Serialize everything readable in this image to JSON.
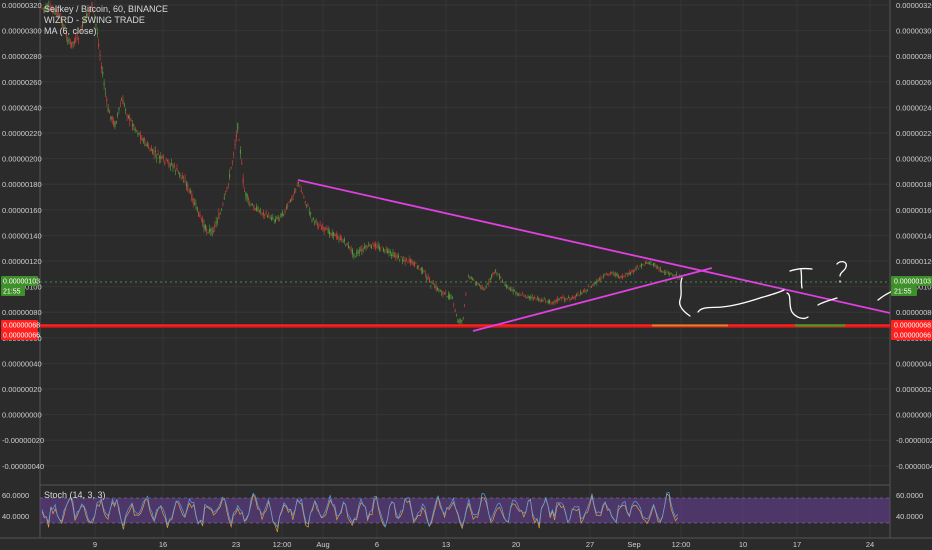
{
  "header": {
    "symbol_line": "Selfkey / Bitcoin, 60, BINANCE",
    "indicator_1": "WIZRD - SWING TRADE",
    "indicator_2": "MA (6, close)"
  },
  "oscillator": {
    "label": "Stoch (14, 3, 3)",
    "ticks": [
      "60.0000",
      "40.0000"
    ]
  },
  "colors": {
    "background": "#2b2b2b",
    "grid": "#363636",
    "candle_up": "#5b9a3a",
    "candle_down": "#d0403a",
    "trendline": "#e040e0",
    "support": "#ff2020",
    "stoch_fill": "#6a3f9a"
  },
  "price_axis": {
    "ticks": [
      "0.00000320",
      "0.00000300",
      "0.00000280",
      "0.00000260",
      "0.00000240",
      "0.00000220",
      "0.00000200",
      "0.00000180",
      "0.00000160",
      "0.00000140",
      "0.00000120",
      "0.00000100",
      "0.00000080",
      "0.00000060",
      "0.00000040",
      "0.00000020",
      "0.00000000",
      "-0.00000020",
      "-0.00000040"
    ],
    "current_price_tag": {
      "value": "0.00000103",
      "time": "21:55"
    },
    "support_tags": [
      "0.00000068",
      "0.00000066"
    ]
  },
  "time_axis": {
    "ticks": [
      "9",
      "16",
      "23",
      "12:00",
      "Aug",
      "6",
      "13",
      "20",
      "27",
      "Sep",
      "12:00",
      "10",
      "17",
      "24"
    ]
  },
  "chart_data": {
    "type": "line",
    "title": "Selfkey / Bitcoin, 60, BINANCE",
    "ylim": [
      -4.8e-07,
      3.23e-06
    ],
    "series": [
      {
        "name": "Selfkey / Bitcoin",
        "x": [
          "9",
          "16",
          "23",
          "12:00",
          "Aug",
          "6",
          "13",
          "20",
          "27",
          "Sep",
          "12:00"
        ],
        "values": [
          3e-06,
          2e-06,
          1.5e-06,
          1.75e-06,
          1.4e-06,
          1.2e-06,
          7.5e-07,
          8.8e-07,
          8.5e-07,
          1.05e-06,
          1.03e-06
        ]
      }
    ],
    "support_levels": [
      6.8e-07,
      6.6e-07
    ],
    "last_price": 1.03e-06
  }
}
